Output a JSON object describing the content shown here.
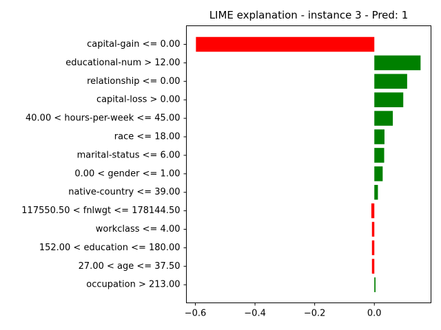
{
  "chart_data": {
    "type": "bar",
    "orientation": "horizontal",
    "title": "LIME explanation - instance 3 - Pred: 1",
    "xlabel": "",
    "ylabel": "",
    "xlim": [
      -0.63,
      0.19
    ],
    "xticks": [
      -0.6,
      -0.4,
      -0.2,
      0.0
    ],
    "xtick_labels": [
      "−0.6",
      "−0.4",
      "−0.2",
      "0.0"
    ],
    "grid": false,
    "legend": "none",
    "colors": {
      "positive": "#008000",
      "negative": "#ff0000"
    },
    "categories": [
      "capital-gain <= 0.00",
      "educational-num > 12.00",
      "relationship <= 0.00",
      "capital-loss > 0.00",
      "40.00 < hours-per-week <= 45.00",
      "race <= 18.00",
      "marital-status <= 6.00",
      "0.00 < gender <= 1.00",
      "native-country <= 39.00",
      "117550.50 < fnlwgt <= 178144.50",
      "workclass <= 4.00",
      "152.00 < education <= 180.00",
      "27.00 < age <= 37.50",
      "occupation > 213.00"
    ],
    "values": [
      -0.598,
      0.155,
      0.11,
      0.097,
      0.062,
      0.034,
      0.033,
      0.028,
      0.012,
      -0.01,
      -0.008,
      -0.008,
      -0.008,
      0.004
    ]
  }
}
